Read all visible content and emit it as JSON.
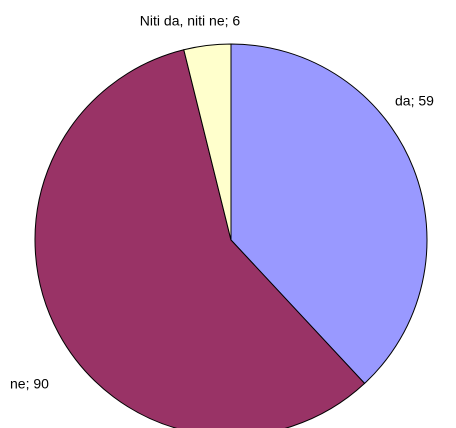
{
  "chart_data": {
    "type": "pie",
    "values": [
      59,
      90,
      6
    ],
    "value_labels": [
      "da; 59",
      "ne; 90",
      "Niti da, niti ne; 6"
    ],
    "colors": [
      "#9999ff",
      "#993366",
      "#ffffcc"
    ]
  }
}
